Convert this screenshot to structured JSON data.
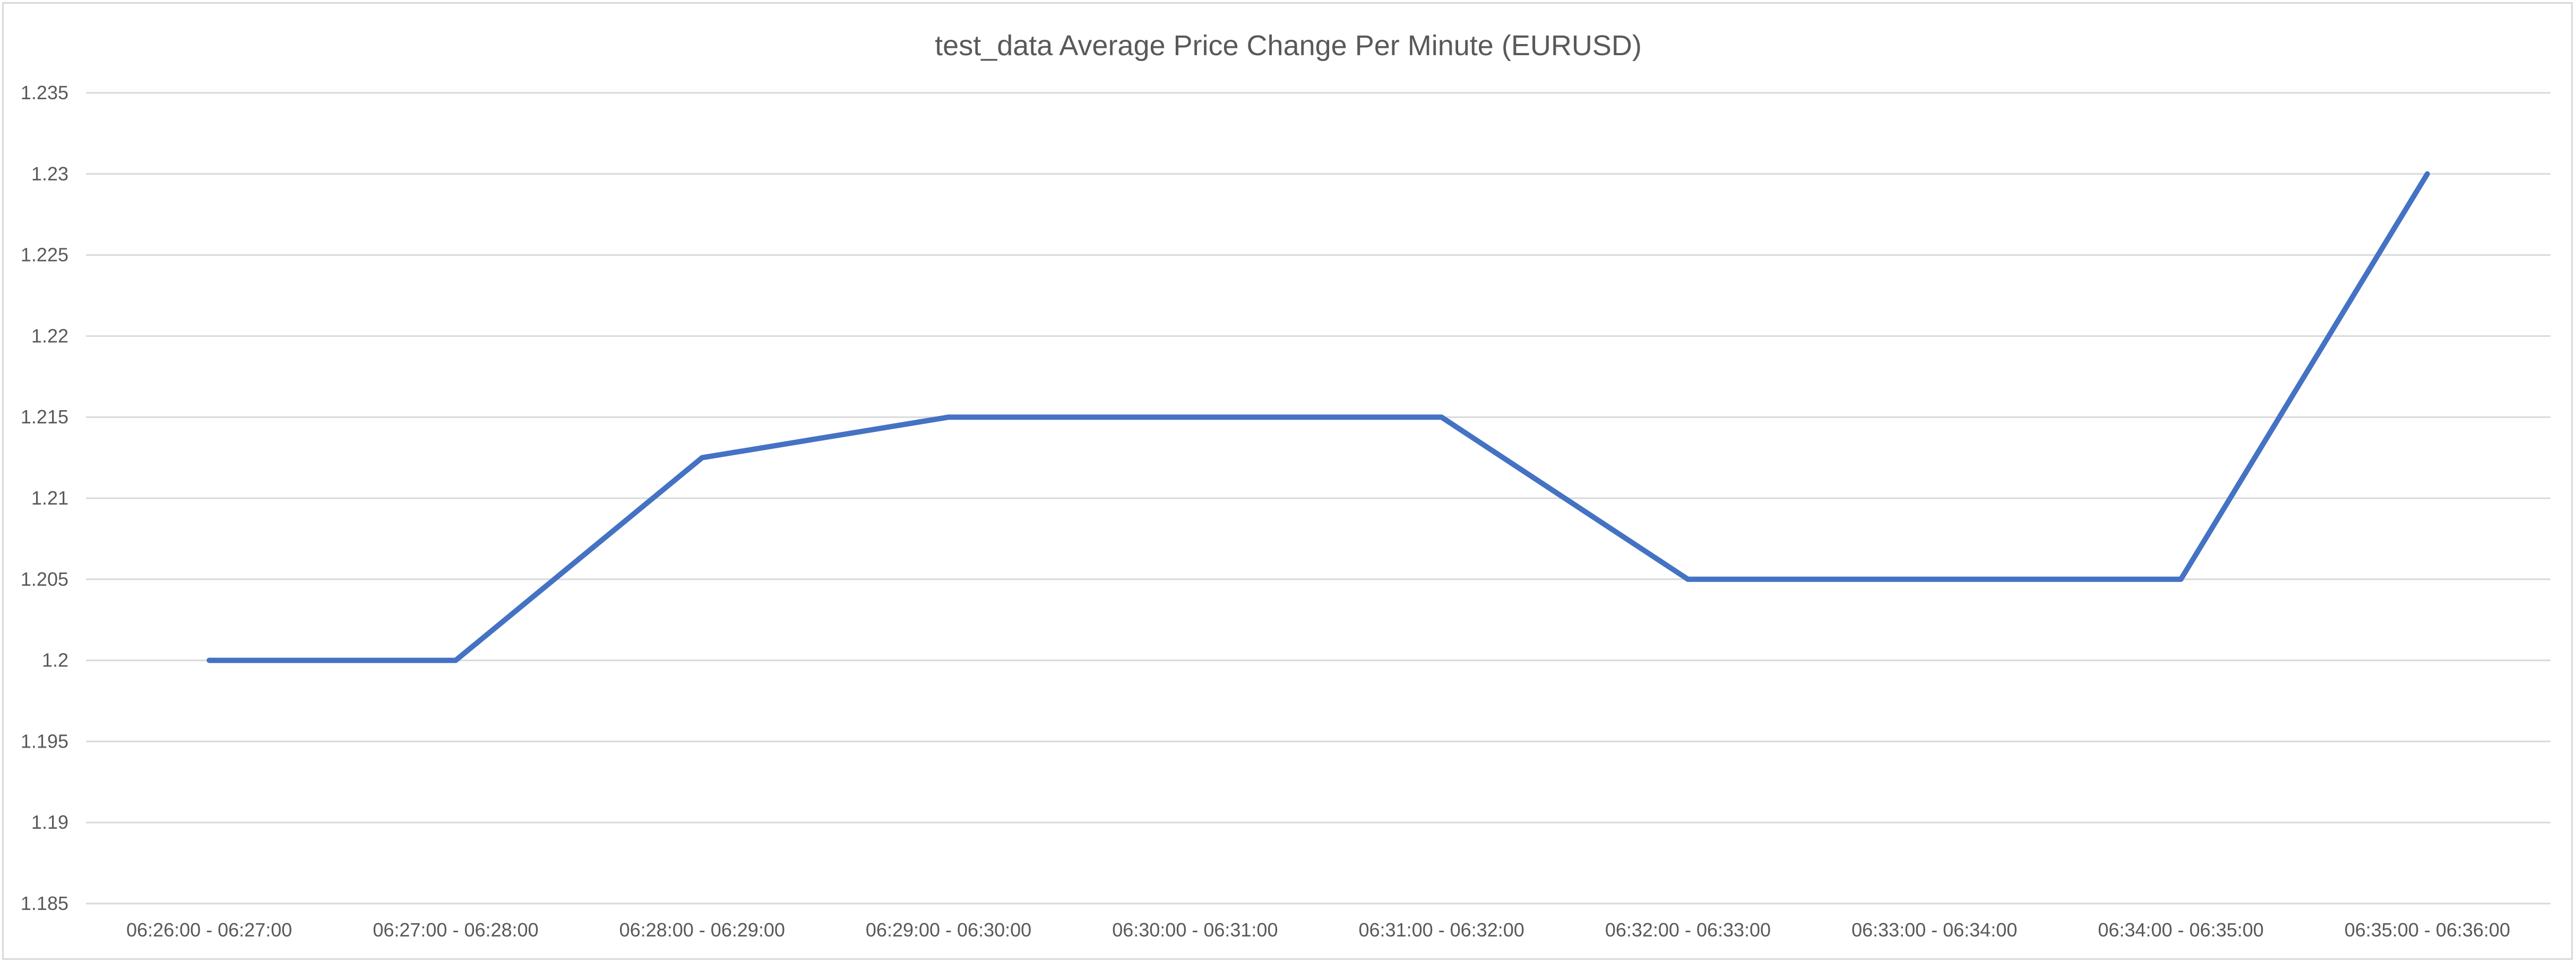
{
  "chart_data": {
    "type": "line",
    "title": "test_data Average Price Change Per Minute (EURUSD)",
    "xlabel": "",
    "ylabel": "",
    "categories": [
      "06:26:00 - 06:27:00",
      "06:27:00 - 06:28:00",
      "06:28:00 - 06:29:00",
      "06:29:00 - 06:30:00",
      "06:30:00 - 06:31:00",
      "06:31:00 - 06:32:00",
      "06:32:00 - 06:33:00",
      "06:33:00 - 06:34:00",
      "06:34:00 - 06:35:00",
      "06:35:00 - 06:36:00"
    ],
    "series": [
      {
        "values": [
          1.2,
          1.2,
          1.2125,
          1.215,
          1.215,
          1.215,
          1.205,
          1.205,
          1.205,
          1.23
        ],
        "color": "#4472c4"
      }
    ],
    "ylim": [
      1.185,
      1.235
    ],
    "yticks": [
      "1.185",
      "1.19",
      "1.195",
      "1.2",
      "1.205",
      "1.21",
      "1.215",
      "1.22",
      "1.225",
      "1.23",
      "1.235"
    ],
    "grid": true,
    "legend": "none"
  }
}
